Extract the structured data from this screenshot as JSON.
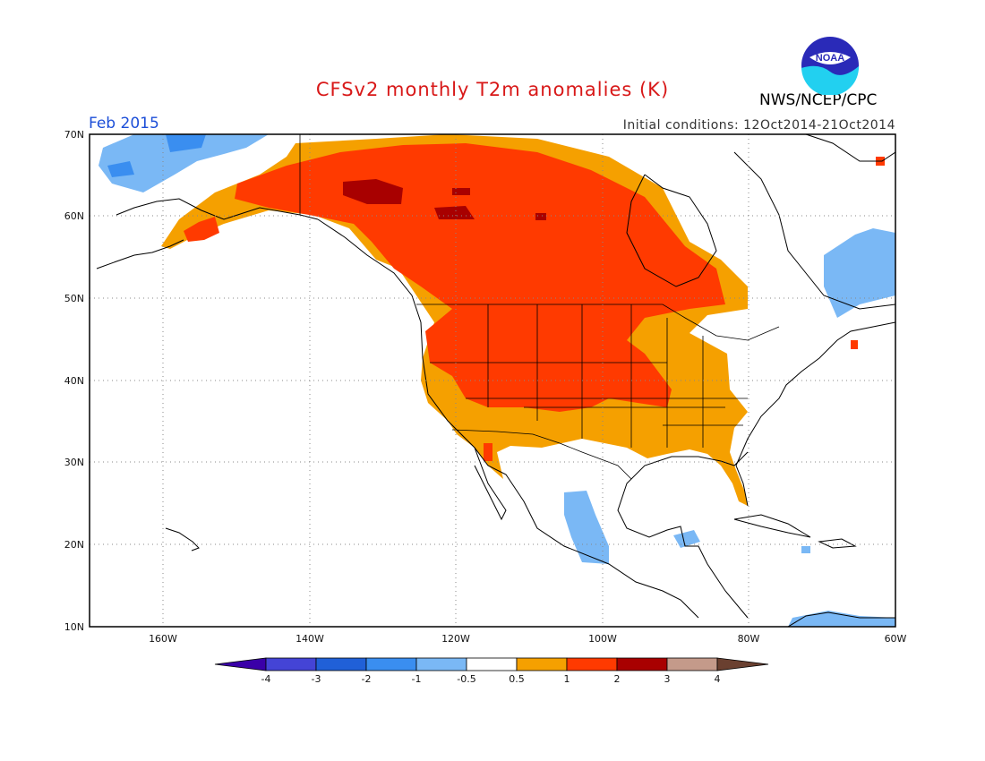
{
  "header": {
    "title": "CFSv2 monthly T2m anomalies (K)",
    "agency": "NWS/NCEP/CPC",
    "month": "Feb 2015",
    "initial_conditions": "Initial conditions: 12Oct2014-21Oct2014",
    "logo_text": "NOAA"
  },
  "axes": {
    "lat_labels": [
      "70N",
      "60N",
      "50N",
      "40N",
      "30N",
      "20N",
      "10N"
    ],
    "lon_labels": [
      "160W",
      "140W",
      "120W",
      "100W",
      "80W",
      "60W"
    ],
    "lat_range": [
      10,
      70
    ],
    "lon_range": [
      -170,
      -60
    ],
    "grid": "dotted"
  },
  "colorbar": {
    "colors": [
      "#3a00a8",
      "#4444d6",
      "#2060d8",
      "#3a8ef0",
      "#7ab8f5",
      "#ffffff",
      "#f5a000",
      "#ff3a00",
      "#a80000",
      "#c49a8a",
      "#6a4030"
    ],
    "labels": [
      "-4",
      "-3",
      "-2",
      "-1",
      "-0.5",
      "0.5",
      "1",
      "2",
      "3",
      "4"
    ]
  },
  "colors": {
    "warm_1": "#f5a000",
    "warm_2": "#ff3a00",
    "warm_3": "#a80000",
    "cool_05": "#7ab8f5",
    "cool_1": "#3a8ef0",
    "title": "#d81818",
    "month": "#1d4fd8"
  },
  "icons": {
    "logo": "noaa-logo"
  }
}
